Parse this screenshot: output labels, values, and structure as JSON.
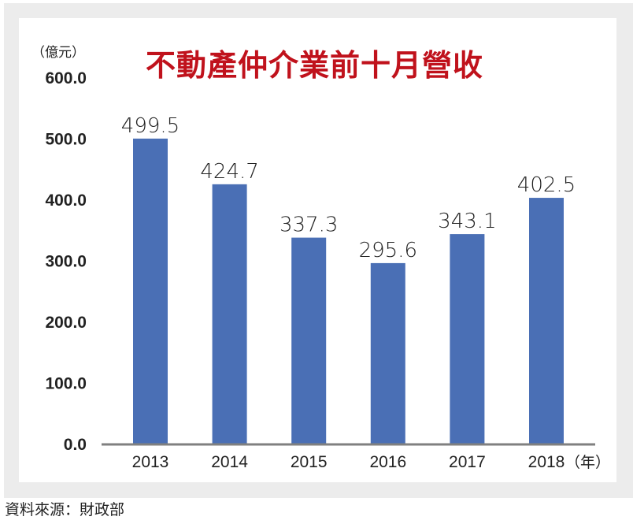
{
  "chart_data": {
    "type": "bar",
    "title": "不動產仲介業前十月營收",
    "ylabel": "（億元）",
    "xlabel": "（年）",
    "categories": [
      "2013",
      "2014",
      "2015",
      "2016",
      "2017",
      "2018"
    ],
    "values": [
      499.5,
      424.7,
      337.3,
      295.6,
      343.1,
      402.5
    ],
    "data_labels": [
      "499.5",
      "424.7",
      "337.3",
      "295.6",
      "343.1",
      "402.5"
    ],
    "ylim": [
      0,
      600
    ],
    "yticks": [
      "0.0",
      "100.0",
      "200.0",
      "300.0",
      "400.0",
      "500.0",
      "600.0"
    ],
    "grid": false,
    "bar_color": "#4a6fb5",
    "axis_color": "#808080",
    "title_color": "#c0121c"
  },
  "source": "資料來源：財政部"
}
